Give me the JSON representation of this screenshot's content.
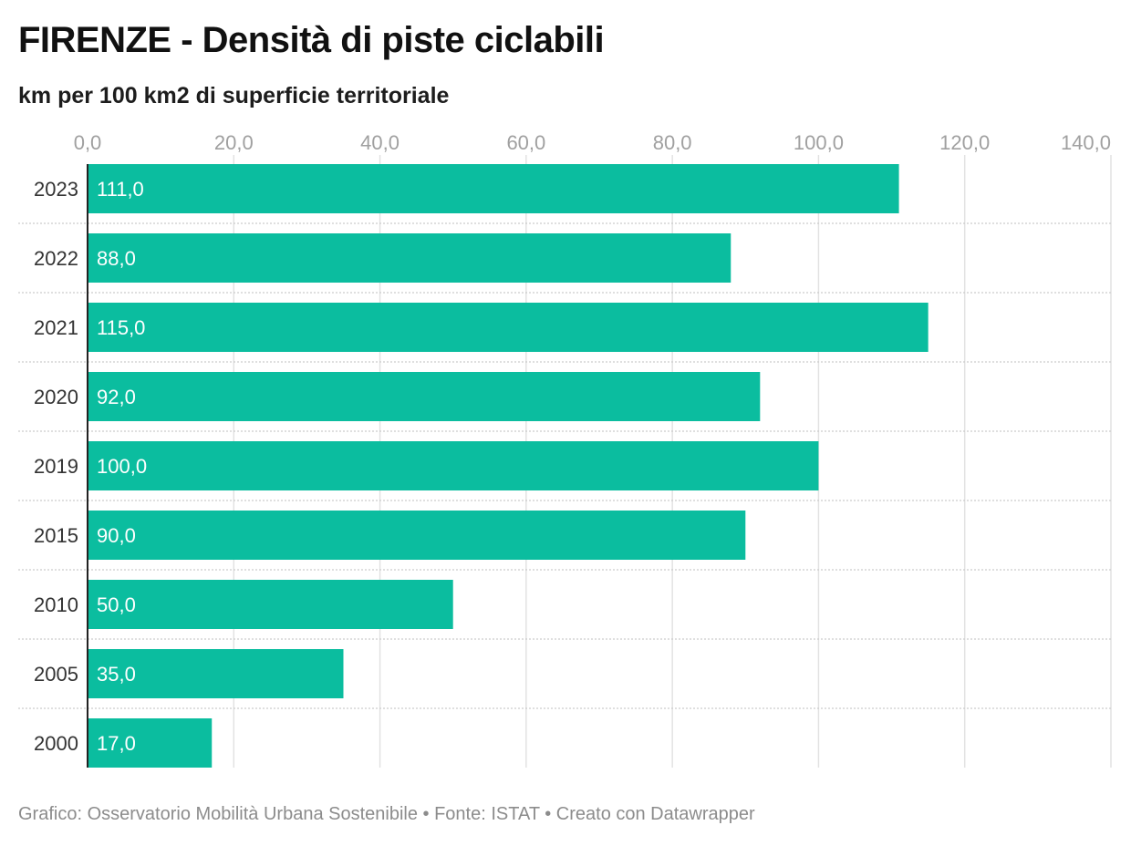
{
  "title": "FIRENZE - Densità di piste ciclabili",
  "subtitle": "km per 100 km2 di superficie territoriale",
  "footer": "Grafico: Osservatorio Mobilità Urbana Sostenibile • Fonte: ISTAT • Creato con Datawrapper",
  "colors": {
    "bar": "#0bbd9f",
    "grid": "#e2e2e2",
    "separator": "#cccccc",
    "axis": "#222222"
  },
  "chart_data": {
    "type": "bar",
    "orientation": "horizontal",
    "categories": [
      "2023",
      "2022",
      "2021",
      "2020",
      "2019",
      "2015",
      "2010",
      "2005",
      "2000"
    ],
    "values": [
      111.0,
      88.0,
      115.0,
      92.0,
      100.0,
      90.0,
      50.0,
      35.0,
      17.0
    ],
    "value_labels": [
      "111,0",
      "88,0",
      "115,0",
      "92,0",
      "100,0",
      "90,0",
      "50,0",
      "35,0",
      "17,0"
    ],
    "xlim": [
      0,
      140
    ],
    "x_ticks": [
      0,
      20,
      40,
      60,
      80,
      100,
      120,
      140
    ],
    "x_tick_labels": [
      "0,0",
      "20,0",
      "40,0",
      "60,0",
      "80,0",
      "100,0",
      "120,0",
      "140,0"
    ],
    "x_axis_position": "top",
    "grid": true
  }
}
